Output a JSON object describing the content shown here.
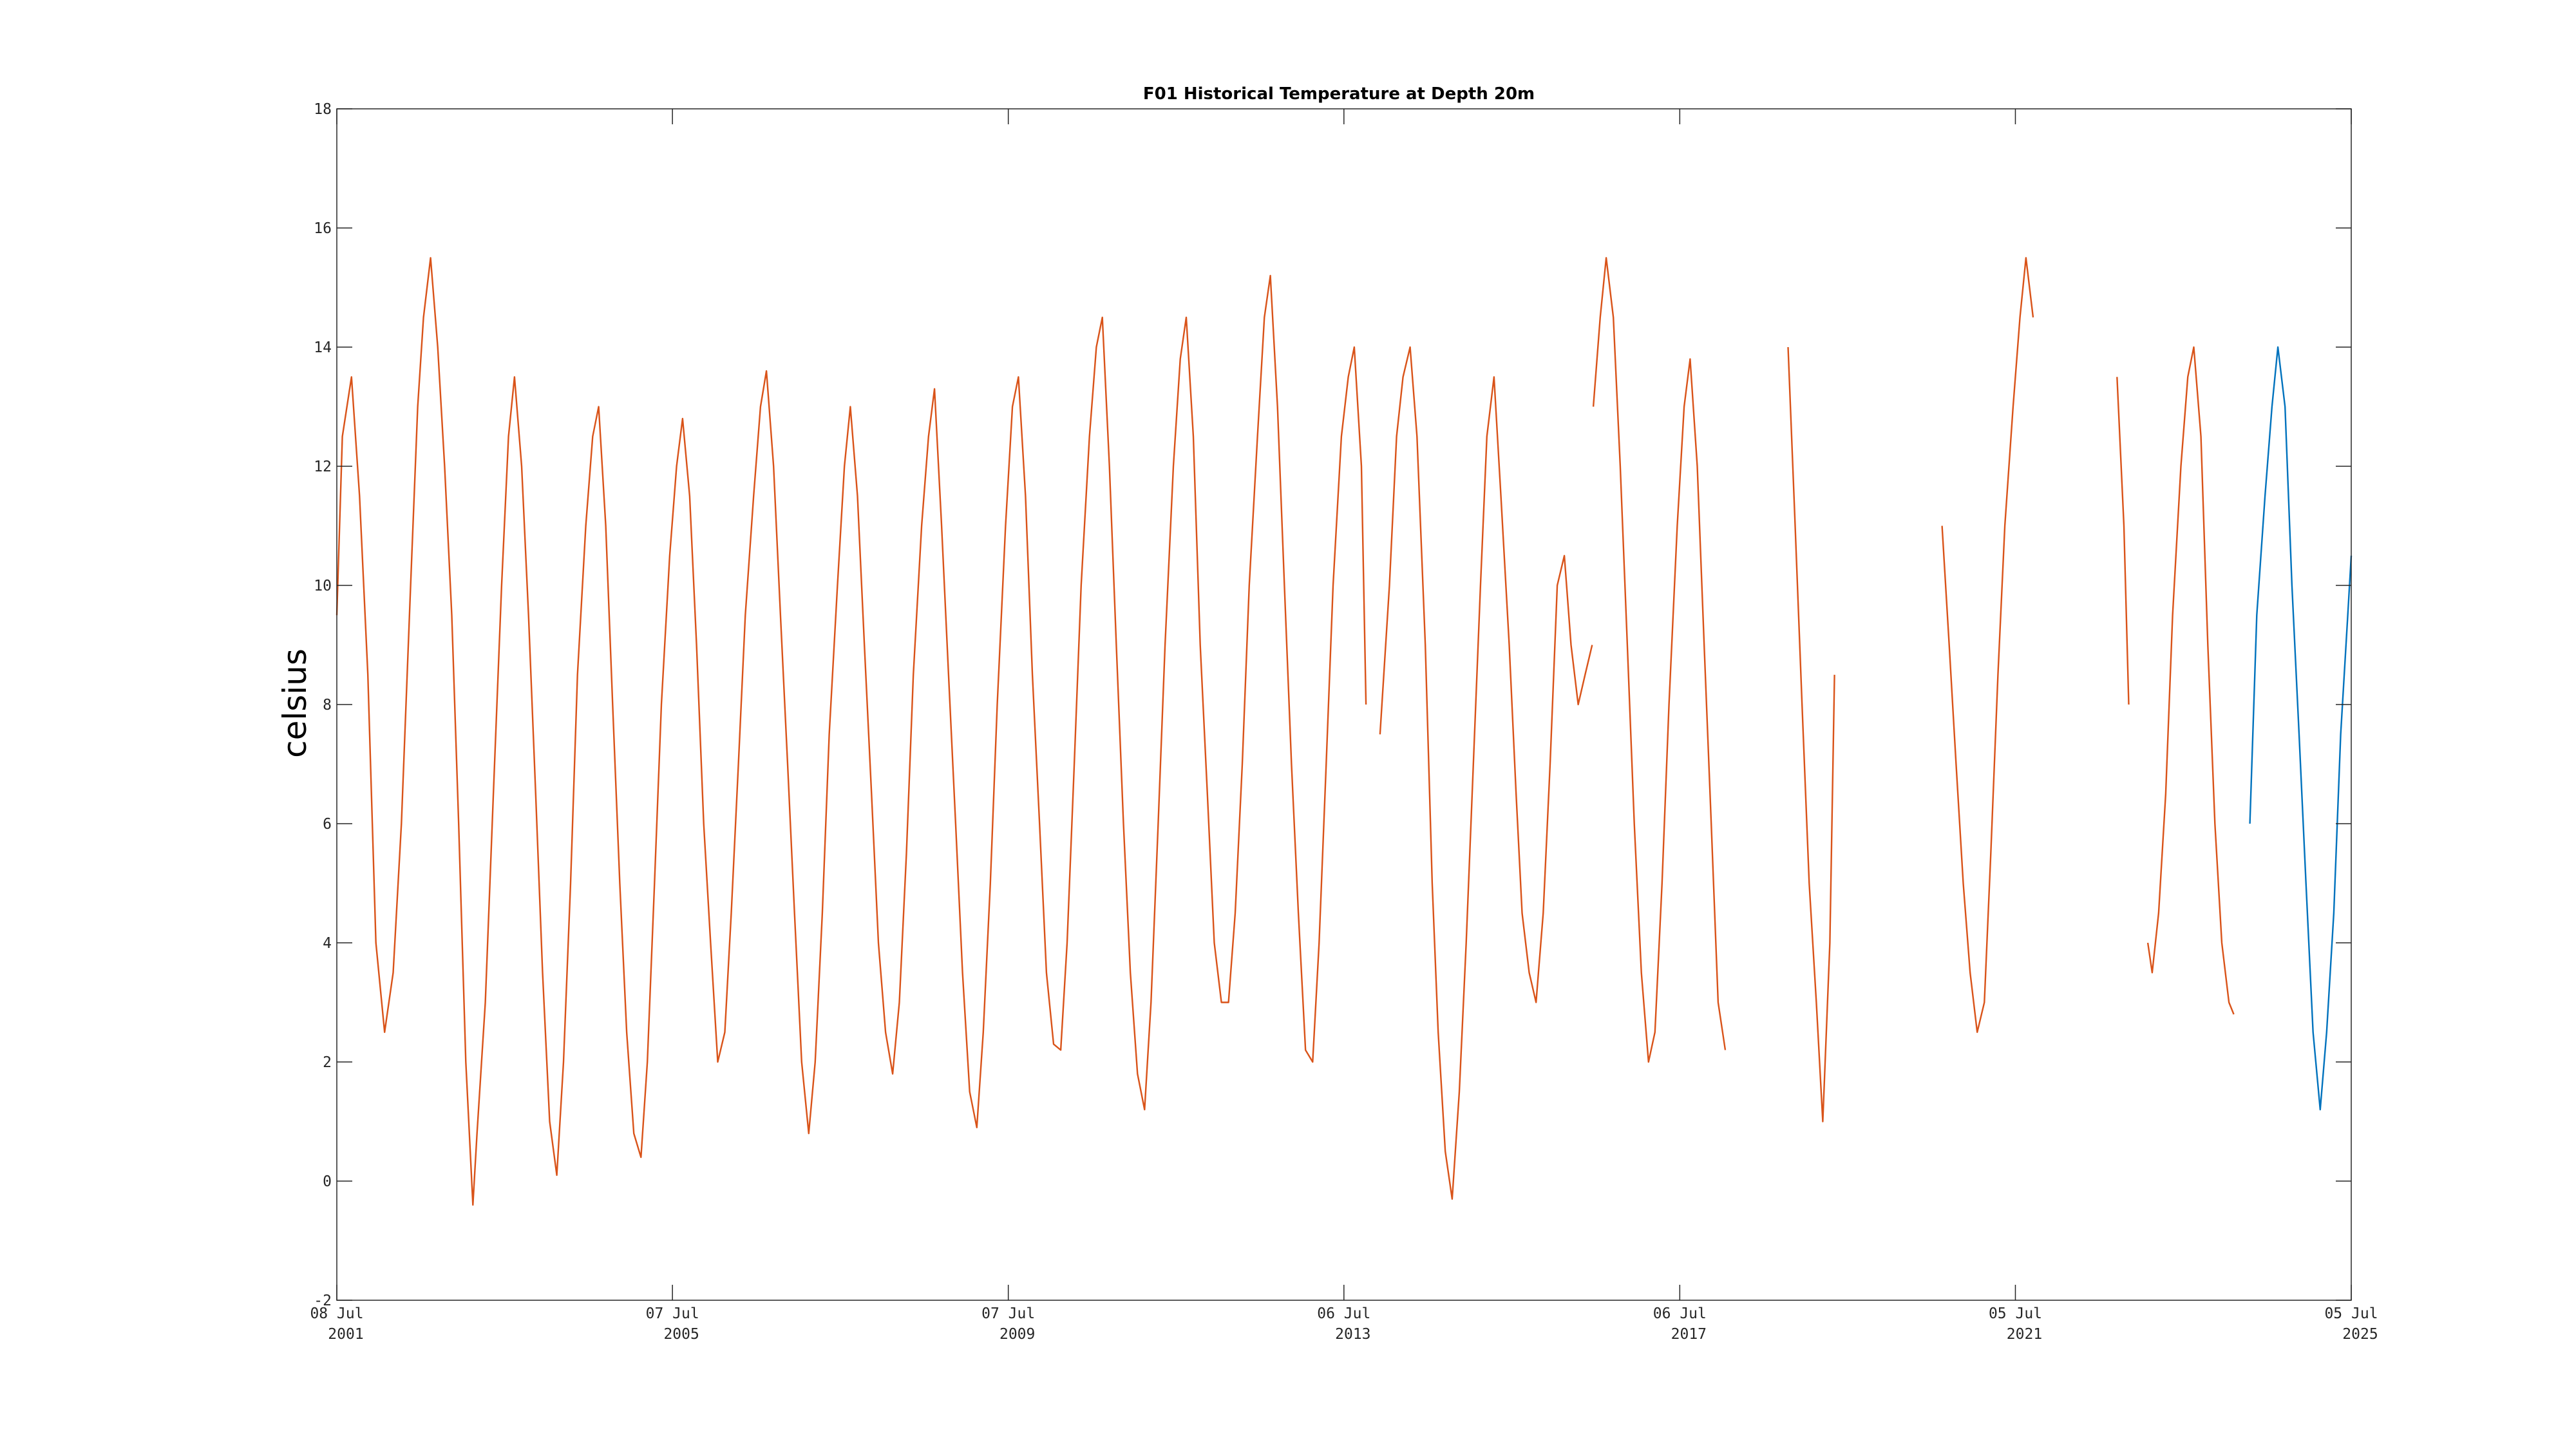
{
  "chart_data": {
    "type": "line",
    "title": "F01 Historical Temperature at Depth 20m",
    "xlabel": "",
    "ylabel": "celsius",
    "ylim": [
      -2,
      18
    ],
    "yticks": [
      -2,
      0,
      2,
      4,
      6,
      8,
      10,
      12,
      14,
      16,
      18
    ],
    "xlim": [
      "2001-07-08",
      "2025-07-05"
    ],
    "xticks": [
      {
        "date": "2001-07-08",
        "day": "08 Jul",
        "year": "2001"
      },
      {
        "date": "2005-07-07",
        "day": "07 Jul",
        "year": "2005"
      },
      {
        "date": "2009-07-07",
        "day": "07 Jul",
        "year": "2009"
      },
      {
        "date": "2013-07-06",
        "day": "06 Jul",
        "year": "2013"
      },
      {
        "date": "2017-07-06",
        "day": "06 Jul",
        "year": "2017"
      },
      {
        "date": "2021-07-05",
        "day": "05 Jul",
        "year": "2021"
      },
      {
        "date": "2025-07-05",
        "day": "05 Jul",
        "year": "2025"
      }
    ],
    "grid": false,
    "series": [
      {
        "color": "#d95319",
        "segments": [
          {
            "x": [
              "2001-07-08",
              "2001-08-01",
              "2001-09-10",
              "2001-10-15",
              "2001-11-20",
              "2001-12-25",
              "2002-02-01",
              "2002-03-10",
              "2002-04-15",
              "2002-05-25",
              "2002-06-25",
              "2002-07-20",
              "2002-08-20",
              "2002-09-20",
              "2002-10-20",
              "2002-11-20",
              "2002-12-20",
              "2003-01-20",
              "2003-02-20",
              "2003-03-10",
              "2003-04-15",
              "2003-05-20",
              "2003-06-25",
              "2003-07-25",
              "2003-08-20",
              "2003-09-20",
              "2003-10-20",
              "2003-11-20",
              "2003-12-20",
              "2004-01-20",
              "2004-02-20",
              "2004-03-20",
              "2004-04-20",
              "2004-05-20",
              "2004-06-25",
              "2004-07-25",
              "2004-08-20",
              "2004-09-20",
              "2004-10-20",
              "2004-11-20",
              "2004-12-20",
              "2005-01-20",
              "2005-02-20",
              "2005-03-20",
              "2005-04-20",
              "2005-05-20",
              "2005-06-25",
              "2005-07-25",
              "2005-08-20",
              "2005-09-20",
              "2005-10-20",
              "2005-11-20",
              "2005-12-20",
              "2006-01-20",
              "2006-02-20",
              "2006-03-20",
              "2006-04-20",
              "2006-05-20",
              "2006-06-25",
              "2006-07-25",
              "2006-08-20",
              "2006-09-20",
              "2006-10-20",
              "2006-11-20",
              "2006-12-20",
              "2007-01-20",
              "2007-02-20",
              "2007-03-20",
              "2007-04-20",
              "2007-05-20",
              "2007-06-25",
              "2007-07-25",
              "2007-08-20",
              "2007-09-20",
              "2007-10-20",
              "2007-11-20",
              "2007-12-20",
              "2008-01-20",
              "2008-02-20",
              "2008-03-20",
              "2008-04-20",
              "2008-05-20",
              "2008-06-25",
              "2008-07-25",
              "2008-08-20",
              "2008-09-20",
              "2008-10-20",
              "2008-11-20",
              "2008-12-20",
              "2009-01-20",
              "2009-02-20",
              "2009-03-20",
              "2009-04-20",
              "2009-05-20",
              "2009-06-25",
              "2009-07-25",
              "2009-08-20",
              "2009-09-20",
              "2009-10-20",
              "2009-11-20",
              "2009-12-20",
              "2010-01-20",
              "2010-02-20",
              "2010-03-20",
              "2010-04-20",
              "2010-05-20",
              "2010-06-25",
              "2010-07-25",
              "2010-08-20",
              "2010-09-20",
              "2010-10-20",
              "2010-11-20",
              "2010-12-20",
              "2011-01-20",
              "2011-02-20",
              "2011-03-20",
              "2011-04-20",
              "2011-05-20",
              "2011-06-25",
              "2011-07-25",
              "2011-08-20",
              "2011-09-20",
              "2011-10-20",
              "2011-11-20",
              "2011-12-20",
              "2012-01-20",
              "2012-02-20",
              "2012-03-20",
              "2012-04-20",
              "2012-05-20",
              "2012-06-25",
              "2012-07-25",
              "2012-08-20",
              "2012-09-20",
              "2012-10-20",
              "2012-11-20",
              "2012-12-20",
              "2013-01-20",
              "2013-02-20",
              "2013-03-20",
              "2013-04-20",
              "2013-05-20",
              "2013-06-25",
              "2013-07-25",
              "2013-08-20",
              "2013-09-20",
              "2013-10-10"
            ],
            "y": [
              9.5,
              12.5,
              13.5,
              11.5,
              8.5,
              4.0,
              2.5,
              3.5,
              6.0,
              10.0,
              13.0,
              14.5,
              15.5,
              14.0,
              12.0,
              9.5,
              6.0,
              2.0,
              -0.4,
              0.8,
              3.0,
              6.5,
              10.0,
              12.5,
              13.5,
              12.0,
              9.5,
              6.5,
              3.5,
              1.0,
              0.1,
              2.0,
              5.0,
              8.5,
              11.0,
              12.5,
              13.0,
              11.0,
              8.0,
              5.0,
              2.5,
              0.8,
              0.4,
              2.0,
              5.0,
              8.0,
              10.5,
              12.0,
              12.8,
              11.5,
              9.0,
              6.0,
              4.0,
              2.0,
              2.5,
              4.5,
              7.0,
              9.5,
              11.5,
              13.0,
              13.6,
              12.0,
              9.5,
              7.0,
              4.5,
              2.0,
              0.8,
              2.0,
              4.5,
              7.5,
              10.0,
              12.0,
              13.0,
              11.5,
              9.0,
              6.5,
              4.0,
              2.5,
              1.8,
              3.0,
              5.5,
              8.5,
              11.0,
              12.5,
              13.3,
              11.0,
              8.5,
              6.0,
              3.5,
              1.5,
              0.9,
              2.5,
              5.0,
              8.0,
              11.0,
              13.0,
              13.5,
              11.5,
              8.5,
              6.0,
              3.5,
              2.3,
              2.2,
              4.0,
              7.0,
              10.0,
              12.5,
              14.0,
              14.5,
              12.0,
              9.0,
              6.0,
              3.5,
              1.8,
              1.2,
              3.0,
              6.0,
              9.0,
              12.0,
              13.8,
              14.5,
              12.5,
              9.0,
              6.5,
              4.0,
              3.0,
              3.0,
              4.5,
              7.0,
              10.0,
              12.5,
              14.5,
              15.2,
              13.0,
              10.0,
              7.0,
              4.5,
              2.2,
              2.0,
              4.0,
              7.0,
              10.0,
              12.5,
              13.5,
              14.0,
              12.0,
              8.0
            ]
          },
          {
            "x": [
              "2013-12-10",
              "2014-01-20",
              "2014-02-20",
              "2014-03-20",
              "2014-04-20",
              "2014-05-20",
              "2014-06-25",
              "2014-07-25",
              "2014-08-20",
              "2014-09-20",
              "2014-10-20",
              "2014-11-20",
              "2014-12-20",
              "2015-01-20",
              "2015-02-20",
              "2015-03-20",
              "2015-04-20",
              "2015-05-20",
              "2015-06-25",
              "2015-07-25",
              "2015-08-20",
              "2015-09-20",
              "2015-10-20",
              "2015-11-20",
              "2015-12-20",
              "2016-01-20",
              "2016-02-20",
              "2016-03-20",
              "2016-04-20",
              "2016-05-20",
              "2016-06-20"
            ],
            "y": [
              7.5,
              10.0,
              12.5,
              13.5,
              14.0,
              12.5,
              9.0,
              5.0,
              2.5,
              0.5,
              -0.3,
              1.5,
              4.0,
              7.0,
              10.0,
              12.5,
              13.5,
              11.5,
              9.0,
              6.5,
              4.5,
              3.5,
              3.0,
              4.5,
              7.0,
              10.0,
              10.5,
              9.0,
              8.0,
              8.5,
              9.0
            ]
          },
          {
            "x": [
              "2016-06-25",
              "2016-07-25",
              "2016-08-20",
              "2016-09-20",
              "2016-10-20",
              "2016-11-20",
              "2016-12-20",
              "2017-01-20",
              "2017-02-20",
              "2017-03-20",
              "2017-04-20",
              "2017-05-20",
              "2017-06-25",
              "2017-07-25",
              "2017-08-20",
              "2017-09-20",
              "2017-10-20",
              "2017-11-20",
              "2017-12-20",
              "2018-01-20"
            ],
            "y": [
              13.0,
              14.5,
              15.5,
              14.5,
              12.0,
              9.0,
              6.0,
              3.5,
              2.0,
              2.5,
              5.0,
              8.0,
              11.0,
              13.0,
              13.8,
              12.0,
              9.0,
              6.0,
              3.0,
              2.2
            ]
          },
          {
            "x": [
              "2018-10-20",
              "2018-11-20",
              "2018-12-20",
              "2019-01-20",
              "2019-02-20",
              "2019-03-20",
              "2019-04-20",
              "2019-05-10"
            ],
            "y": [
              14.0,
              11.0,
              8.0,
              5.0,
              3.0,
              1.0,
              4.0,
              8.5
            ]
          },
          {
            "x": [
              "2020-08-20",
              "2020-09-20",
              "2020-10-20",
              "2020-11-20",
              "2020-12-20",
              "2021-01-20",
              "2021-02-20",
              "2021-03-20",
              "2021-04-20",
              "2021-05-20",
              "2021-06-25",
              "2021-07-25",
              "2021-08-20",
              "2021-09-20"
            ],
            "y": [
              11.0,
              9.0,
              7.0,
              5.0,
              3.5,
              2.5,
              3.0,
              5.5,
              8.5,
              11.0,
              13.0,
              14.5,
              15.5,
              14.5
            ]
          },
          {
            "x": [
              "2022-09-20",
              "2022-10-20",
              "2022-11-10"
            ],
            "y": [
              13.5,
              11.0,
              8.0
            ]
          },
          {
            "x": [
              "2023-02-01",
              "2023-02-20",
              "2023-03-20",
              "2023-04-20",
              "2023-05-20",
              "2023-06-25",
              "2023-07-25",
              "2023-08-20",
              "2023-09-20",
              "2023-10-20",
              "2023-11-20",
              "2023-12-20",
              "2024-01-20",
              "2024-02-10"
            ],
            "y": [
              4.0,
              3.5,
              4.5,
              6.5,
              9.5,
              12.0,
              13.5,
              14.0,
              12.5,
              9.0,
              6.0,
              4.0,
              3.0,
              2.8
            ]
          }
        ]
      },
      {
        "color": "#0072bd",
        "segments": [
          {
            "x": [
              "2024-04-20",
              "2024-05-20",
              "2024-06-25",
              "2024-07-25",
              "2024-08-20",
              "2024-09-20",
              "2024-10-20",
              "2024-11-20",
              "2024-12-20",
              "2025-01-20",
              "2025-02-20",
              "2025-03-20",
              "2025-04-20",
              "2025-05-20",
              "2025-06-20",
              "2025-07-05"
            ],
            "y": [
              6.0,
              9.5,
              11.5,
              13.0,
              14.0,
              13.0,
              10.0,
              7.5,
              5.0,
              2.5,
              1.2,
              2.5,
              4.5,
              7.5,
              9.5,
              10.5
            ]
          }
        ]
      }
    ]
  }
}
